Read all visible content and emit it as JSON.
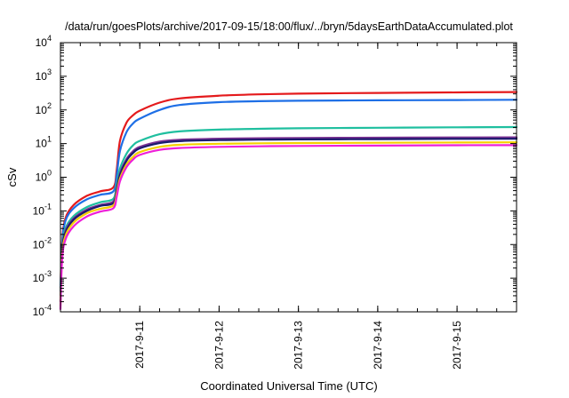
{
  "chart_data": {
    "type": "line",
    "title": "/data/run/goesPlots/archive/2017-09-15/18:00/flux/../bryn/5daysEarthDataAccumulated.plot",
    "xlabel": "Coordinated Universal Time (UTC)",
    "ylabel": "cSv",
    "y_scale": "log",
    "ylim": [
      0.0001,
      10000
    ],
    "xlim": [
      "2017-09-10 00:00",
      "2017-09-15 18:00"
    ],
    "x_ticks": [
      "2017-9-11",
      "2017-9-12",
      "2017-9-13",
      "2017-9-14",
      "2017-9-15"
    ],
    "y_ticks": [
      {
        "base": "10",
        "exp": "-4"
      },
      {
        "base": "10",
        "exp": "-3"
      },
      {
        "base": "10",
        "exp": "-2"
      },
      {
        "base": "10",
        "exp": "-1"
      },
      {
        "base": "10",
        "exp": "0"
      },
      {
        "base": "10",
        "exp": "1"
      },
      {
        "base": "10",
        "exp": "2"
      },
      {
        "base": "10",
        "exp": "3"
      },
      {
        "base": "10",
        "exp": "4"
      }
    ],
    "grid": false,
    "legend": "none",
    "series": [
      {
        "color": "#e41a1c",
        "x": [
          "2017-09-10 00:00",
          "2017-09-10 00:30",
          "2017-09-10 01:30",
          "2017-09-10 04:00",
          "2017-09-10 08:00",
          "2017-09-10 12:00",
          "2017-09-10 16:00",
          "2017-09-10 17:00",
          "2017-09-10 18:00",
          "2017-09-10 20:00",
          "2017-09-10 22:00",
          "2017-09-11 00:00",
          "2017-09-11 06:00",
          "2017-09-11 12:00",
          "2017-09-12 00:00",
          "2017-09-12 12:00",
          "2017-09-13 00:00",
          "2017-09-14 00:00",
          "2017-09-15 00:00",
          "2017-09-15 18:00"
        ],
        "y": [
          0.0005,
          0.012,
          0.06,
          0.15,
          0.28,
          0.38,
          0.5,
          1.6,
          12,
          42,
          70,
          95,
          165,
          220,
          265,
          290,
          305,
          320,
          332,
          340
        ]
      },
      {
        "color": "#1e6fe6",
        "x": [
          "2017-09-10 00:00",
          "2017-09-10 00:30",
          "2017-09-10 01:30",
          "2017-09-10 04:00",
          "2017-09-10 08:00",
          "2017-09-10 12:00",
          "2017-09-10 16:00",
          "2017-09-10 17:00",
          "2017-09-10 18:00",
          "2017-09-10 20:00",
          "2017-09-10 22:00",
          "2017-09-11 00:00",
          "2017-09-11 06:00",
          "2017-09-11 12:00",
          "2017-09-12 00:00",
          "2017-09-12 12:00",
          "2017-09-13 00:00",
          "2017-09-14 00:00",
          "2017-09-15 00:00",
          "2017-09-15 18:00"
        ],
        "y": [
          0.0004,
          0.01,
          0.05,
          0.12,
          0.22,
          0.3,
          0.38,
          1.1,
          6,
          22,
          40,
          55,
          100,
          140,
          170,
          182,
          188,
          193,
          197,
          200
        ]
      },
      {
        "color": "#1fbf9f",
        "x": [
          "2017-09-10 00:00",
          "2017-09-10 00:30",
          "2017-09-10 01:30",
          "2017-09-10 04:00",
          "2017-09-10 08:00",
          "2017-09-10 12:00",
          "2017-09-10 16:00",
          "2017-09-10 17:00",
          "2017-09-10 18:00",
          "2017-09-10 20:00",
          "2017-09-10 22:00",
          "2017-09-11 00:00",
          "2017-09-11 06:00",
          "2017-09-11 12:00",
          "2017-09-12 00:00",
          "2017-09-12 12:00",
          "2017-09-13 00:00",
          "2017-09-14 00:00",
          "2017-09-15 00:00",
          "2017-09-15 18:00"
        ],
        "y": [
          0.0003,
          0.008,
          0.03,
          0.07,
          0.13,
          0.18,
          0.23,
          0.6,
          1.8,
          5,
          9,
          12,
          19,
          23,
          26,
          27.5,
          28.5,
          29.5,
          30.5,
          31
        ]
      },
      {
        "color": "#7b3294",
        "x": [
          "2017-09-10 00:00",
          "2017-09-10 00:30",
          "2017-09-10 01:30",
          "2017-09-10 04:00",
          "2017-09-10 08:00",
          "2017-09-10 12:00",
          "2017-09-10 16:00",
          "2017-09-10 17:00",
          "2017-09-10 18:00",
          "2017-09-10 20:00",
          "2017-09-10 22:00",
          "2017-09-11 00:00",
          "2017-09-11 06:00",
          "2017-09-11 12:00",
          "2017-09-12 00:00",
          "2017-09-12 12:00",
          "2017-09-13 00:00",
          "2017-09-14 00:00",
          "2017-09-15 00:00",
          "2017-09-15 18:00"
        ],
        "y": [
          0.0002,
          0.006,
          0.025,
          0.06,
          0.11,
          0.15,
          0.19,
          0.45,
          1.3,
          3.5,
          6,
          8,
          11.5,
          13,
          14,
          14.4,
          14.7,
          15,
          15.2,
          15.3
        ]
      },
      {
        "color": "#1a1a6e",
        "x": [
          "2017-09-10 00:00",
          "2017-09-10 00:30",
          "2017-09-10 01:30",
          "2017-09-10 04:00",
          "2017-09-10 08:00",
          "2017-09-10 12:00",
          "2017-09-10 16:00",
          "2017-09-10 17:00",
          "2017-09-10 18:00",
          "2017-09-10 20:00",
          "2017-09-10 22:00",
          "2017-09-11 00:00",
          "2017-09-11 06:00",
          "2017-09-11 12:00",
          "2017-09-12 00:00",
          "2017-09-12 12:00",
          "2017-09-13 00:00",
          "2017-09-14 00:00",
          "2017-09-15 00:00",
          "2017-09-15 18:00"
        ],
        "y": [
          0.0002,
          0.0055,
          0.022,
          0.055,
          0.1,
          0.14,
          0.17,
          0.4,
          1.15,
          3.1,
          5.3,
          7.2,
          10.3,
          11.8,
          12.7,
          13.1,
          13.3,
          13.6,
          13.8,
          13.9
        ]
      },
      {
        "color": "#f5d000",
        "x": [
          "2017-09-10 00:00",
          "2017-09-10 00:30",
          "2017-09-10 01:30",
          "2017-09-10 04:00",
          "2017-09-10 08:00",
          "2017-09-10 12:00",
          "2017-09-10 16:00",
          "2017-09-10 17:00",
          "2017-09-10 18:00",
          "2017-09-10 20:00",
          "2017-09-10 22:00",
          "2017-09-11 00:00",
          "2017-09-11 06:00",
          "2017-09-11 12:00",
          "2017-09-12 00:00",
          "2017-09-12 12:00",
          "2017-09-13 00:00",
          "2017-09-14 00:00",
          "2017-09-15 00:00",
          "2017-09-15 18:00"
        ],
        "y": [
          0.00015,
          0.0045,
          0.018,
          0.045,
          0.085,
          0.115,
          0.145,
          0.32,
          0.9,
          2.4,
          4.1,
          5.6,
          8,
          9.2,
          9.9,
          10.2,
          10.4,
          10.6,
          10.8,
          10.9
        ]
      },
      {
        "color": "#ee1fd8",
        "x": [
          "2017-09-10 00:00",
          "2017-09-10 00:30",
          "2017-09-10 01:30",
          "2017-09-10 04:00",
          "2017-09-10 08:00",
          "2017-09-10 12:00",
          "2017-09-10 16:00",
          "2017-09-10 17:00",
          "2017-09-10 18:00",
          "2017-09-10 20:00",
          "2017-09-10 22:00",
          "2017-09-11 00:00",
          "2017-09-11 06:00",
          "2017-09-11 12:00",
          "2017-09-12 00:00",
          "2017-09-12 12:00",
          "2017-09-13 00:00",
          "2017-09-14 00:00",
          "2017-09-15 00:00",
          "2017-09-15 18:00"
        ],
        "y": [
          0.00012,
          0.0035,
          0.014,
          0.035,
          0.068,
          0.095,
          0.12,
          0.26,
          0.75,
          2,
          3.4,
          4.6,
          6.5,
          7.4,
          8,
          8.3,
          8.5,
          8.7,
          8.9,
          9
        ]
      }
    ]
  }
}
